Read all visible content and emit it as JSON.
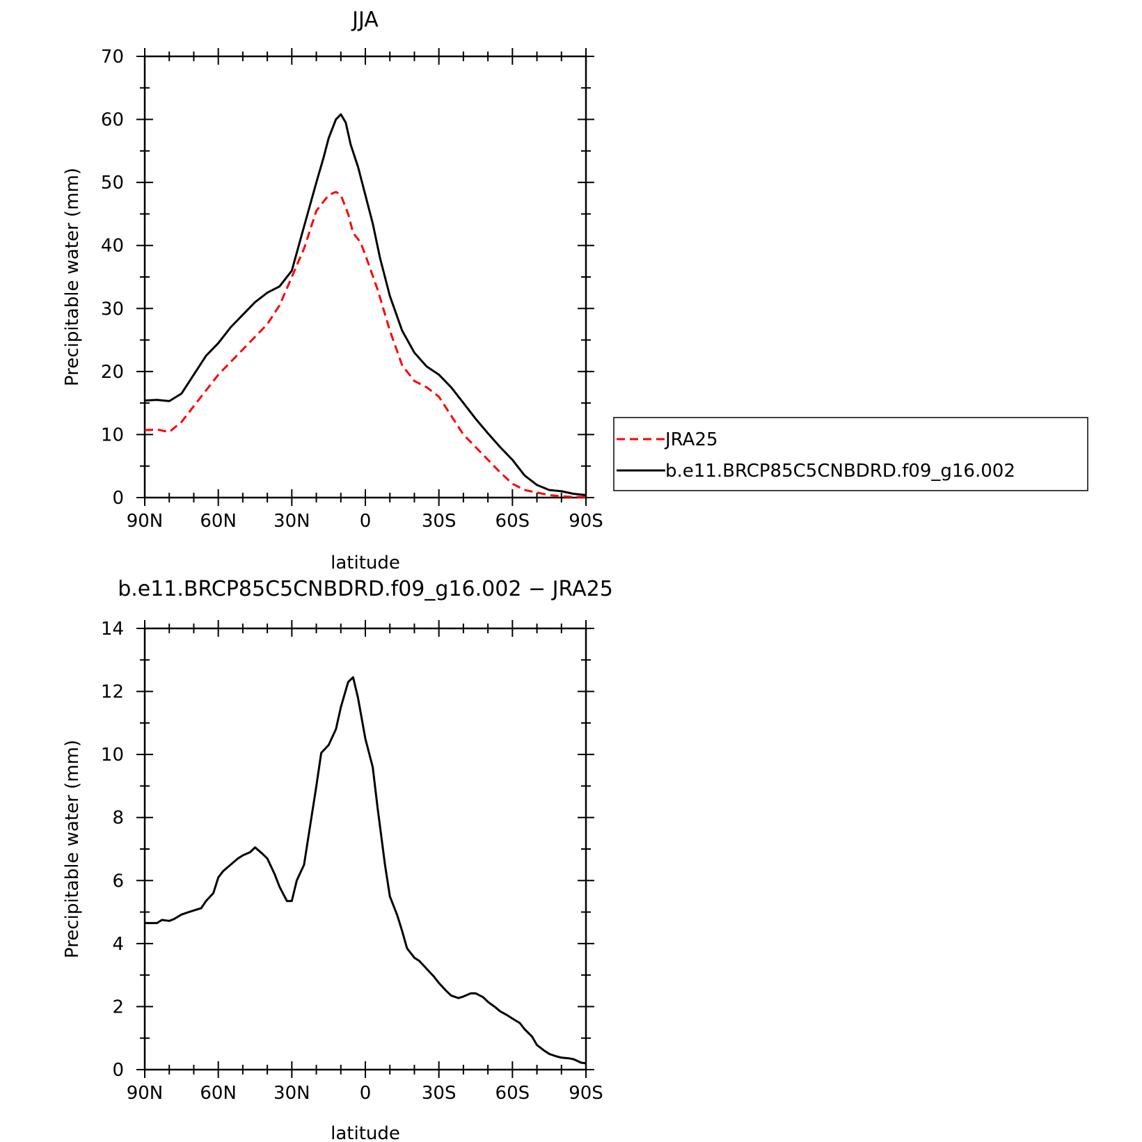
{
  "chart_data": [
    {
      "type": "line",
      "title": "JJA",
      "xlabel": "latitude",
      "ylabel": "Precipitable water (mm)",
      "xlim": [
        90,
        -90
      ],
      "ylim": [
        0,
        70
      ],
      "xticks": [
        90,
        60,
        30,
        0,
        -30,
        -60,
        -90
      ],
      "xtick_labels": [
        "90N",
        "60N",
        "30N",
        "0",
        "30S",
        "60S",
        "90S"
      ],
      "yticks": [
        0,
        10,
        20,
        30,
        40,
        50,
        60,
        70
      ],
      "ytick_labels": [
        "0",
        "10",
        "20",
        "30",
        "40",
        "50",
        "60",
        "70"
      ],
      "grid": false,
      "legend_position": "right",
      "series": [
        {
          "name": "JRA25",
          "color": "#ff0000",
          "dash": "dashed",
          "x": [
            90,
            85,
            80,
            75,
            70,
            65,
            60,
            55,
            50,
            45,
            40,
            35,
            30,
            25,
            20,
            15,
            12,
            10,
            7,
            5,
            2,
            0,
            -5,
            -10,
            -15,
            -20,
            -25,
            -30,
            -35,
            -40,
            -45,
            -50,
            -55,
            -60,
            -65,
            -70,
            -75,
            -80,
            -85,
            -90
          ],
          "values": [
            10.7,
            10.8,
            10.4,
            12.0,
            14.5,
            17.0,
            19.5,
            21.5,
            23.5,
            25.5,
            27.5,
            30.5,
            35.0,
            39.5,
            45.5,
            48.0,
            48.5,
            48.0,
            45.0,
            42.0,
            40.5,
            38.5,
            33.0,
            26.5,
            21.0,
            18.5,
            17.5,
            16.0,
            13.0,
            10.0,
            8.0,
            6.0,
            4.0,
            2.2,
            1.2,
            0.8,
            0.4,
            0.2,
            0.1,
            0.1
          ]
        },
        {
          "name": "b.e11.BRCP85C5CNBDRD.f09_g16.002",
          "color": "#000000",
          "dash": "solid",
          "x": [
            90,
            85,
            80,
            75,
            70,
            65,
            60,
            55,
            50,
            45,
            40,
            35,
            30,
            25,
            20,
            17,
            15,
            12,
            10,
            8,
            6,
            3,
            0,
            -3,
            -6,
            -10,
            -15,
            -20,
            -25,
            -30,
            -35,
            -40,
            -45,
            -50,
            -55,
            -60,
            -65,
            -70,
            -75,
            -80,
            -85,
            -90
          ],
          "values": [
            15.4,
            15.5,
            15.3,
            16.5,
            19.5,
            22.5,
            24.5,
            27.0,
            29.0,
            31.0,
            32.5,
            33.5,
            36.0,
            43.0,
            50.0,
            54.0,
            57.0,
            60.0,
            60.8,
            59.5,
            56.0,
            52.5,
            48.0,
            43.5,
            38.0,
            32.0,
            26.5,
            23.0,
            20.8,
            19.5,
            17.5,
            15.0,
            12.5,
            10.2,
            8.0,
            6.0,
            3.5,
            2.0,
            1.2,
            1.0,
            0.6,
            0.4
          ]
        }
      ]
    },
    {
      "type": "line",
      "title": "b.e11.BRCP85C5CNBDRD.f09_g16.002 − JRA25",
      "xlabel": "latitude",
      "ylabel": "Precipitable water (mm)",
      "xlim": [
        90,
        -90
      ],
      "ylim": [
        0,
        14
      ],
      "xticks": [
        90,
        60,
        30,
        0,
        -30,
        -60,
        -90
      ],
      "xtick_labels": [
        "90N",
        "60N",
        "30N",
        "0",
        "30S",
        "60S",
        "90S"
      ],
      "yticks": [
        0,
        2,
        4,
        6,
        8,
        10,
        12,
        14
      ],
      "ytick_labels": [
        "0",
        "2",
        "4",
        "6",
        "8",
        "10",
        "12",
        "14"
      ],
      "grid": false,
      "series": [
        {
          "color": "#000000",
          "dash": "solid",
          "x": [
            90,
            85,
            83,
            80,
            78,
            75,
            72,
            70,
            67,
            65,
            62,
            60,
            58,
            55,
            52,
            50,
            47,
            45,
            42,
            40,
            37,
            35,
            32,
            30,
            28,
            25,
            22,
            20,
            18,
            15,
            12,
            10,
            7,
            5,
            3,
            0,
            -3,
            -5,
            -8,
            -10,
            -13,
            -15,
            -17,
            -20,
            -22,
            -25,
            -28,
            -30,
            -33,
            -35,
            -38,
            -40,
            -43,
            -45,
            -48,
            -50,
            -53,
            -55,
            -58,
            -60,
            -63,
            -65,
            -68,
            -70,
            -73,
            -75,
            -78,
            -80,
            -83,
            -85,
            -88,
            -90
          ],
          "values": [
            4.65,
            4.65,
            4.75,
            4.72,
            4.78,
            4.92,
            5.0,
            5.05,
            5.12,
            5.35,
            5.6,
            6.1,
            6.3,
            6.5,
            6.7,
            6.8,
            6.9,
            7.05,
            6.85,
            6.7,
            6.2,
            5.8,
            5.35,
            5.35,
            6.0,
            6.5,
            8.0,
            9.0,
            10.05,
            10.3,
            10.8,
            11.5,
            12.3,
            12.45,
            11.8,
            10.5,
            9.6,
            8.3,
            6.5,
            5.5,
            4.9,
            4.4,
            3.85,
            3.55,
            3.45,
            3.2,
            2.95,
            2.75,
            2.5,
            2.35,
            2.27,
            2.32,
            2.42,
            2.42,
            2.3,
            2.15,
            1.98,
            1.85,
            1.72,
            1.62,
            1.48,
            1.28,
            1.05,
            0.78,
            0.6,
            0.5,
            0.42,
            0.38,
            0.36,
            0.33,
            0.22,
            0.2
          ]
        }
      ]
    }
  ]
}
